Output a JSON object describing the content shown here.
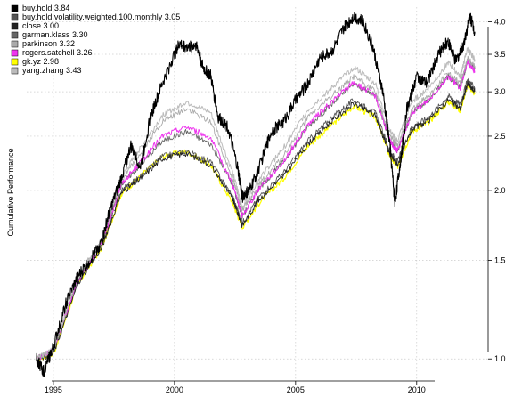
{
  "chart_data": {
    "type": "line",
    "title": "",
    "xlabel": "",
    "ylabel": "Cumulative Performance",
    "y_scale": "log",
    "ylim": [
      0.92,
      4.25
    ],
    "xlim": [
      1993.9,
      2012.95
    ],
    "grid": true,
    "legend_position": "top-left",
    "x_ticks": [
      {
        "value": 1995,
        "label": "1995"
      },
      {
        "value": 2000,
        "label": "2000"
      },
      {
        "value": 2005,
        "label": "2005"
      },
      {
        "value": 2010,
        "label": "2010"
      }
    ],
    "y_ticks": [
      {
        "value": 1.0,
        "label": "1.0"
      },
      {
        "value": 1.5,
        "label": "1.5"
      },
      {
        "value": 2.0,
        "label": "2.0"
      },
      {
        "value": 2.5,
        "label": "2.5"
      },
      {
        "value": 3.0,
        "label": "3.0"
      },
      {
        "value": 3.5,
        "label": "3.5"
      },
      {
        "value": 4.0,
        "label": "4.0"
      }
    ],
    "series": [
      {
        "name": "buy.hold 3.84",
        "color": "#000000",
        "width": 1.1,
        "points": [
          [
            1994.3,
            1.0
          ],
          [
            1994.6,
            0.95
          ],
          [
            1995.0,
            1.05
          ],
          [
            1995.5,
            1.25
          ],
          [
            1996.0,
            1.4
          ],
          [
            1996.5,
            1.5
          ],
          [
            1997.0,
            1.62
          ],
          [
            1997.3,
            1.82
          ],
          [
            1997.8,
            2.1
          ],
          [
            1998.2,
            2.4
          ],
          [
            1998.6,
            2.2
          ],
          [
            1999.0,
            2.7
          ],
          [
            1999.5,
            3.1
          ],
          [
            2000.0,
            3.5
          ],
          [
            2000.2,
            3.65
          ],
          [
            2000.6,
            3.6
          ],
          [
            2000.9,
            3.65
          ],
          [
            2001.2,
            3.3
          ],
          [
            2001.5,
            3.2
          ],
          [
            2001.8,
            2.7
          ],
          [
            2002.2,
            2.6
          ],
          [
            2002.6,
            2.2
          ],
          [
            2002.8,
            1.95
          ],
          [
            2003.1,
            2.0
          ],
          [
            2003.5,
            2.2
          ],
          [
            2004.0,
            2.55
          ],
          [
            2004.5,
            2.65
          ],
          [
            2005.0,
            2.9
          ],
          [
            2005.5,
            3.1
          ],
          [
            2006.0,
            3.45
          ],
          [
            2006.5,
            3.55
          ],
          [
            2007.0,
            3.9
          ],
          [
            2007.4,
            4.1
          ],
          [
            2007.8,
            4.0
          ],
          [
            2008.2,
            3.6
          ],
          [
            2008.6,
            3.0
          ],
          [
            2008.9,
            2.4
          ],
          [
            2009.1,
            1.9
          ],
          [
            2009.3,
            2.2
          ],
          [
            2009.6,
            2.8
          ],
          [
            2010.0,
            3.2
          ],
          [
            2010.4,
            3.1
          ],
          [
            2010.9,
            3.5
          ],
          [
            2011.3,
            3.7
          ],
          [
            2011.6,
            3.4
          ],
          [
            2011.9,
            3.6
          ],
          [
            2012.2,
            4.1
          ],
          [
            2012.4,
            3.84
          ]
        ]
      },
      {
        "name": "buy.hold.volatility.weighted.100.monthly 3.05",
        "color": "#555555",
        "width": 0.9,
        "points": [
          [
            1994.3,
            1.0
          ],
          [
            1995.0,
            1.03
          ],
          [
            1996.0,
            1.37
          ],
          [
            1997.0,
            1.6
          ],
          [
            1997.8,
            2.0
          ],
          [
            1998.5,
            2.1
          ],
          [
            1999.5,
            2.3
          ],
          [
            2000.5,
            2.35
          ],
          [
            2001.5,
            2.25
          ],
          [
            2002.4,
            1.95
          ],
          [
            2002.8,
            1.75
          ],
          [
            2003.5,
            1.95
          ],
          [
            2004.5,
            2.15
          ],
          [
            2005.5,
            2.45
          ],
          [
            2006.5,
            2.7
          ],
          [
            2007.4,
            2.9
          ],
          [
            2008.3,
            2.75
          ],
          [
            2008.9,
            2.35
          ],
          [
            2009.2,
            2.25
          ],
          [
            2009.8,
            2.6
          ],
          [
            2010.5,
            2.7
          ],
          [
            2011.3,
            2.95
          ],
          [
            2011.8,
            2.85
          ],
          [
            2012.1,
            3.15
          ],
          [
            2012.4,
            3.05
          ]
        ]
      },
      {
        "name": "close 3.00",
        "color": "#222222",
        "width": 0.9,
        "points": [
          [
            1994.3,
            1.0
          ],
          [
            1995.0,
            1.02
          ],
          [
            1996.0,
            1.36
          ],
          [
            1997.0,
            1.58
          ],
          [
            1997.8,
            1.98
          ],
          [
            1998.5,
            2.08
          ],
          [
            1999.5,
            2.28
          ],
          [
            2000.5,
            2.33
          ],
          [
            2001.5,
            2.22
          ],
          [
            2002.4,
            1.93
          ],
          [
            2002.8,
            1.73
          ],
          [
            2003.5,
            1.93
          ],
          [
            2004.5,
            2.12
          ],
          [
            2005.5,
            2.42
          ],
          [
            2006.5,
            2.66
          ],
          [
            2007.4,
            2.86
          ],
          [
            2008.3,
            2.72
          ],
          [
            2008.9,
            2.32
          ],
          [
            2009.2,
            2.22
          ],
          [
            2009.8,
            2.57
          ],
          [
            2010.5,
            2.66
          ],
          [
            2011.3,
            2.9
          ],
          [
            2011.8,
            2.8
          ],
          [
            2012.1,
            3.1
          ],
          [
            2012.4,
            3.0
          ]
        ]
      },
      {
        "name": "garman.klass 3.30",
        "color": "#666666",
        "width": 0.9,
        "points": [
          [
            1994.3,
            1.0
          ],
          [
            1995.0,
            1.04
          ],
          [
            1996.0,
            1.38
          ],
          [
            1997.0,
            1.62
          ],
          [
            1997.8,
            2.05
          ],
          [
            1998.5,
            2.2
          ],
          [
            1999.5,
            2.45
          ],
          [
            2000.5,
            2.55
          ],
          [
            2001.5,
            2.42
          ],
          [
            2002.4,
            2.05
          ],
          [
            2002.8,
            1.8
          ],
          [
            2003.5,
            2.02
          ],
          [
            2004.5,
            2.25
          ],
          [
            2005.5,
            2.6
          ],
          [
            2006.5,
            2.85
          ],
          [
            2007.4,
            3.1
          ],
          [
            2008.3,
            2.95
          ],
          [
            2008.9,
            2.45
          ],
          [
            2009.2,
            2.35
          ],
          [
            2009.8,
            2.75
          ],
          [
            2010.5,
            2.9
          ],
          [
            2011.3,
            3.2
          ],
          [
            2011.8,
            3.05
          ],
          [
            2012.1,
            3.4
          ],
          [
            2012.4,
            3.3
          ]
        ]
      },
      {
        "name": "parkinson 3.32",
        "color": "#aaaaaa",
        "width": 0.9,
        "points": [
          [
            1994.3,
            1.0
          ],
          [
            1995.0,
            1.04
          ],
          [
            1996.0,
            1.39
          ],
          [
            1997.0,
            1.63
          ],
          [
            1997.8,
            2.08
          ],
          [
            1998.5,
            2.3
          ],
          [
            1999.5,
            2.65
          ],
          [
            2000.5,
            2.8
          ],
          [
            2001.5,
            2.65
          ],
          [
            2002.4,
            2.1
          ],
          [
            2002.8,
            1.85
          ],
          [
            2003.5,
            2.05
          ],
          [
            2004.5,
            2.3
          ],
          [
            2005.5,
            2.7
          ],
          [
            2006.5,
            2.95
          ],
          [
            2007.4,
            3.2
          ],
          [
            2008.3,
            3.0
          ],
          [
            2008.9,
            2.5
          ],
          [
            2009.2,
            2.4
          ],
          [
            2009.8,
            2.8
          ],
          [
            2010.5,
            2.95
          ],
          [
            2011.3,
            3.25
          ],
          [
            2011.8,
            3.1
          ],
          [
            2012.1,
            3.45
          ],
          [
            2012.4,
            3.32
          ]
        ]
      },
      {
        "name": "rogers.satchell 3.26",
        "color": "#ee33ee",
        "width": 1.0,
        "points": [
          [
            1994.3,
            1.0
          ],
          [
            1995.0,
            1.04
          ],
          [
            1996.0,
            1.38
          ],
          [
            1997.0,
            1.61
          ],
          [
            1997.8,
            2.05
          ],
          [
            1998.5,
            2.22
          ],
          [
            1999.5,
            2.5
          ],
          [
            2000.5,
            2.6
          ],
          [
            2001.5,
            2.48
          ],
          [
            2002.4,
            2.05
          ],
          [
            2002.8,
            1.8
          ],
          [
            2003.5,
            2.02
          ],
          [
            2004.5,
            2.25
          ],
          [
            2005.5,
            2.62
          ],
          [
            2006.5,
            2.88
          ],
          [
            2007.4,
            3.12
          ],
          [
            2008.3,
            2.95
          ],
          [
            2008.9,
            2.45
          ],
          [
            2009.2,
            2.35
          ],
          [
            2009.8,
            2.75
          ],
          [
            2010.5,
            2.9
          ],
          [
            2011.3,
            3.2
          ],
          [
            2011.8,
            3.05
          ],
          [
            2012.1,
            3.4
          ],
          [
            2012.4,
            3.26
          ]
        ]
      },
      {
        "name": "gk.yz 2.98",
        "color": "#ffff00",
        "width": 1.2,
        "points": [
          [
            1994.3,
            1.0
          ],
          [
            1995.0,
            1.02
          ],
          [
            1996.0,
            1.36
          ],
          [
            1997.0,
            1.58
          ],
          [
            1997.8,
            1.97
          ],
          [
            1998.5,
            2.1
          ],
          [
            1999.5,
            2.3
          ],
          [
            2000.5,
            2.35
          ],
          [
            2001.5,
            2.22
          ],
          [
            2002.4,
            1.9
          ],
          [
            2002.8,
            1.72
          ],
          [
            2003.5,
            1.9
          ],
          [
            2004.5,
            2.1
          ],
          [
            2005.5,
            2.4
          ],
          [
            2006.5,
            2.62
          ],
          [
            2007.4,
            2.83
          ],
          [
            2008.3,
            2.7
          ],
          [
            2008.9,
            2.3
          ],
          [
            2009.2,
            2.2
          ],
          [
            2009.8,
            2.55
          ],
          [
            2010.5,
            2.65
          ],
          [
            2011.3,
            2.88
          ],
          [
            2011.8,
            2.78
          ],
          [
            2012.1,
            3.08
          ],
          [
            2012.4,
            2.98
          ]
        ]
      },
      {
        "name": "yang.zhang 3.43",
        "color": "#bbbbbb",
        "width": 1.0,
        "points": [
          [
            1994.3,
            1.0
          ],
          [
            1995.0,
            1.04
          ],
          [
            1996.0,
            1.4
          ],
          [
            1997.0,
            1.64
          ],
          [
            1997.8,
            2.1
          ],
          [
            1998.5,
            2.35
          ],
          [
            1999.5,
            2.72
          ],
          [
            2000.5,
            2.88
          ],
          [
            2001.5,
            2.75
          ],
          [
            2002.4,
            2.15
          ],
          [
            2002.8,
            1.87
          ],
          [
            2003.5,
            2.1
          ],
          [
            2004.5,
            2.38
          ],
          [
            2005.5,
            2.78
          ],
          [
            2006.5,
            3.05
          ],
          [
            2007.4,
            3.32
          ],
          [
            2008.3,
            3.1
          ],
          [
            2008.9,
            2.55
          ],
          [
            2009.2,
            2.45
          ],
          [
            2009.8,
            2.88
          ],
          [
            2010.5,
            3.05
          ],
          [
            2011.3,
            3.38
          ],
          [
            2011.8,
            3.2
          ],
          [
            2012.1,
            3.58
          ],
          [
            2012.4,
            3.43
          ]
        ]
      }
    ]
  }
}
